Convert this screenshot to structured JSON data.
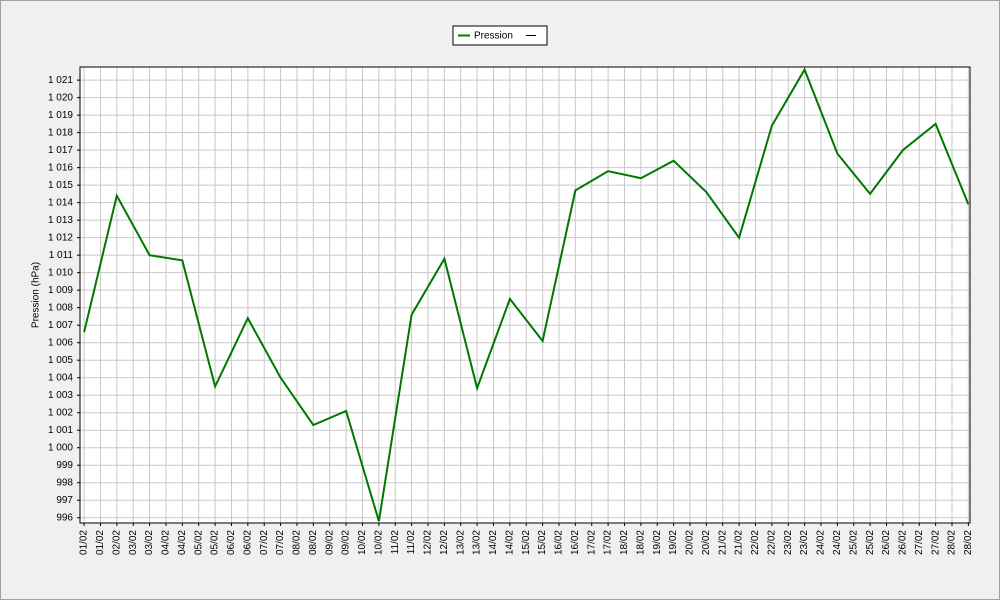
{
  "chart_data": {
    "type": "line",
    "y_label": "Pression (hPa)",
    "categories": [
      "01/02",
      "01/02",
      "02/02",
      "03/02",
      "03/02",
      "04/02",
      "04/02",
      "05/02",
      "05/02",
      "06/02",
      "06/02",
      "07/02",
      "07/02",
      "08/02",
      "08/02",
      "09/02",
      "09/02",
      "10/02",
      "10/02",
      "11/02",
      "11/02",
      "12/02",
      "12/02",
      "13/02",
      "13/02",
      "14/02",
      "14/02",
      "15/02",
      "15/02",
      "16/02",
      "16/02",
      "17/02",
      "17/02",
      "18/02",
      "18/02",
      "19/02",
      "19/02",
      "20/02",
      "20/02",
      "21/02",
      "21/02",
      "22/02",
      "22/02",
      "23/02",
      "23/02",
      "24/02",
      "24/02",
      "25/02",
      "25/02",
      "26/02",
      "26/02",
      "27/02",
      "27/02",
      "28/02",
      "28/02"
    ],
    "xlim": [
      -0.25,
      54.1
    ],
    "series": [
      {
        "name": "Pression",
        "color": "#007800",
        "x": [
          0,
          2,
          4,
          6,
          8,
          10,
          12,
          14,
          16,
          18,
          20,
          22,
          24,
          26,
          28,
          30,
          32,
          34,
          36,
          38,
          40,
          42,
          44,
          46,
          48,
          50,
          52,
          54
        ],
        "values": [
          1006.6,
          1014.4,
          1011.0,
          1010.7,
          1003.5,
          1007.4,
          1004.0,
          1001.3,
          1002.1,
          995.8,
          1007.6,
          1010.8,
          1003.4,
          1008.5,
          1006.1,
          1014.7,
          1015.8,
          1015.4,
          1016.4,
          1014.6,
          1012.0,
          1018.4,
          1021.6,
          1016.8,
          1014.5,
          1017.0,
          1018.5,
          1013.9
        ]
      }
    ],
    "ylim": [
      995.7,
      1021.75
    ],
    "yticks": [
      996,
      997,
      998,
      999,
      {
        "value": 1000,
        "label": "1 000"
      },
      {
        "value": 1001,
        "label": "1 001"
      },
      {
        "value": 1002,
        "label": "1 002"
      },
      {
        "value": 1003,
        "label": "1 003"
      },
      {
        "value": 1004,
        "label": "1 004"
      },
      {
        "value": 1005,
        "label": "1 005"
      },
      {
        "value": 1006,
        "label": "1 006"
      },
      {
        "value": 1007,
        "label": "1 007"
      },
      {
        "value": 1008,
        "label": "1 008"
      },
      {
        "value": 1009,
        "label": "1 009"
      },
      {
        "value": 1010,
        "label": "1 010"
      },
      {
        "value": 1011,
        "label": "1 011"
      },
      {
        "value": 1012,
        "label": "1 012"
      },
      {
        "value": 1013,
        "label": "1 013"
      },
      {
        "value": 1014,
        "label": "1 014"
      },
      {
        "value": 1015,
        "label": "1 015"
      },
      {
        "value": 1016,
        "label": "1 016"
      },
      {
        "value": 1017,
        "label": "1 017"
      },
      {
        "value": 1018,
        "label": "1 018"
      },
      {
        "value": 1019,
        "label": "1 019"
      },
      {
        "value": 1020,
        "label": "1 020"
      },
      {
        "value": 1021,
        "label": "1 021"
      }
    ],
    "grid": true
  }
}
